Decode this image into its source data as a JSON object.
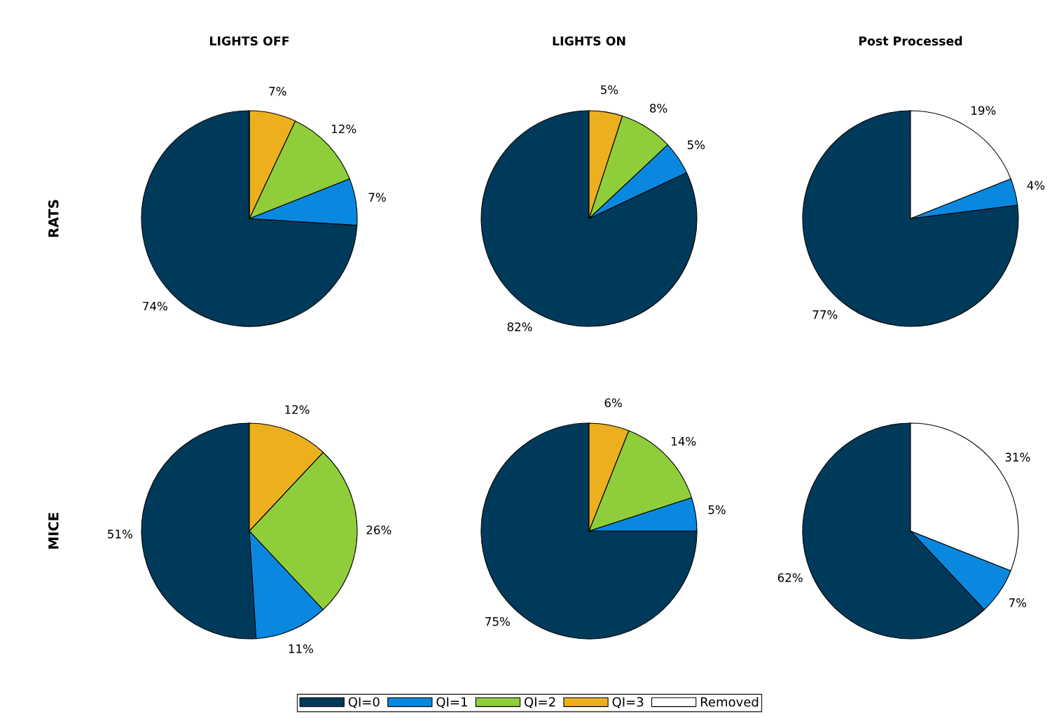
{
  "chart_data": [
    {
      "type": "pie",
      "title": "LIGHTS OFF",
      "ylabel": "RATS",
      "categories": [
        "QI=0",
        "QI=1",
        "QI=2",
        "QI=3",
        "Removed"
      ],
      "values": [
        74,
        7,
        12,
        7,
        0
      ],
      "value_labels": [
        "74%",
        "7%",
        "12%",
        "7%",
        null
      ],
      "colors": [
        "#003a5a",
        "#0a88e0",
        "#8fce3a",
        "#ecb01f",
        "#ffffff"
      ],
      "legend": "bottom"
    },
    {
      "type": "pie",
      "title": "LIGHTS ON",
      "categories": [
        null,
        null,
        null,
        null
      ],
      "values": [
        82,
        5,
        8,
        5
      ],
      "value_labels": [
        "82%",
        "5%",
        "8%",
        "5%"
      ],
      "colors": [
        "#003a5a",
        "#0a88e0",
        "#8fce3a",
        "#ecb01f"
      ]
    },
    {
      "type": "pie",
      "title": "Post Processed",
      "categories": [
        null,
        null,
        null
      ],
      "values": [
        77,
        4,
        19
      ],
      "value_labels": [
        "77%",
        "4%",
        "19%"
      ],
      "colors": [
        "#003a5a",
        "#0a88e0",
        "#ffffff"
      ]
    },
    {
      "type": "pie",
      "ylabel": "MICE",
      "categories": [
        null,
        null,
        null,
        null
      ],
      "values": [
        51,
        11,
        26,
        12
      ],
      "value_labels": [
        "51%",
        "11%",
        "26%",
        "12%"
      ],
      "colors": [
        "#003a5a",
        "#0a88e0",
        "#8fce3a",
        "#ecb01f"
      ]
    },
    {
      "type": "pie",
      "categories": [
        null,
        null,
        null,
        null
      ],
      "values": [
        75,
        5,
        14,
        6
      ],
      "value_labels": [
        "75%",
        "5%",
        "14%",
        "6%"
      ],
      "colors": [
        "#003a5a",
        "#0a88e0",
        "#8fce3a",
        "#ecb01f"
      ]
    },
    {
      "type": "pie",
      "categories": [
        null,
        null,
        null
      ],
      "values": [
        62,
        7,
        31
      ],
      "value_labels": [
        "62%",
        "7%",
        "31%"
      ],
      "colors": [
        "#003a5a",
        "#0a88e0",
        "#ffffff"
      ]
    }
  ]
}
